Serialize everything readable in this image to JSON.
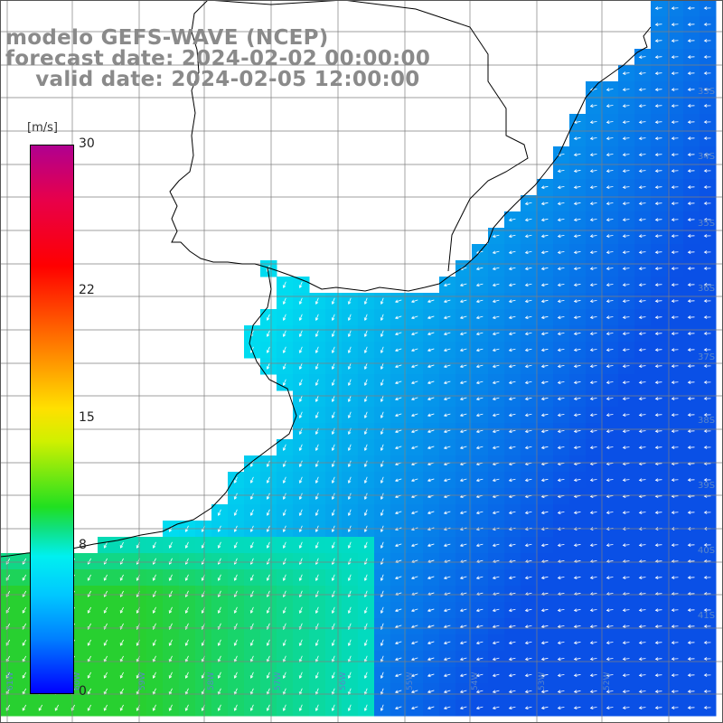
{
  "title": {
    "line1": "modelo GEFS-WAVE (NCEP)",
    "line2": "forecast date: 2024-02-02 00:00:00",
    "line3": "    valid date: 2024-02-05 12:00:00"
  },
  "colorbar": {
    "unit": "[m/s]",
    "ticks": [
      {
        "value": 30,
        "label": "30"
      },
      {
        "value": 22,
        "label": "22"
      },
      {
        "value": 15,
        "label": "15"
      },
      {
        "value": 8,
        "label": "8"
      },
      {
        "value": 0,
        "label": "0"
      }
    ],
    "min": 0,
    "max": 30
  },
  "lat_labels": [
    "33S",
    "34S",
    "35S",
    "36S",
    "37S",
    "38S",
    "39S",
    "40S",
    "41S"
  ],
  "lon_labels": [
    "61W",
    "60W",
    "59W",
    "58W",
    "57W",
    "56W",
    "55W",
    "54W",
    "53W",
    "52W"
  ],
  "colors": {
    "ocean_dark_blue": "#0a50e6",
    "ocean_cyan": "#00dcf0",
    "green_nearshore": "#28d030",
    "land": "#ffffff",
    "grid": "#7f7f7f",
    "arrow": "#ffffff"
  }
}
